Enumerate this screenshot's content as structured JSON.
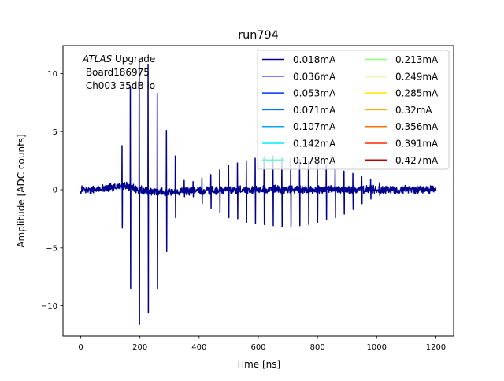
{
  "chart_data": {
    "type": "line",
    "title": "run794",
    "xlabel": "Time [ns]",
    "ylabel": "Amplitude [ADC counts]",
    "xlim": [
      -60,
      1260
    ],
    "ylim": [
      -12.6,
      12.4
    ],
    "xticks": [
      0,
      200,
      400,
      600,
      800,
      1000,
      1200
    ],
    "xtick_labels": [
      "0",
      "200",
      "400",
      "600",
      "800",
      "1000",
      "1200"
    ],
    "yticks": [
      -10,
      -5,
      0,
      5,
      10
    ],
    "ytick_labels": [
      "−10",
      "−5",
      "0",
      "5",
      "10"
    ],
    "grid": false,
    "legend_position": "top-right",
    "legend_columns": 2,
    "annotation": {
      "atlas": "ATLAS",
      "upgrade": " Upgrade",
      "board": " Board186975",
      "channel": " Ch003 35dB lo"
    },
    "series": [
      {
        "name": "0.018mA",
        "color": "#00008f"
      },
      {
        "name": "0.036mA",
        "color": "#0000ea"
      },
      {
        "name": "0.053mA",
        "color": "#0030ff"
      },
      {
        "name": "0.071mA",
        "color": "#0070ff"
      },
      {
        "name": "0.107mA",
        "color": "#00a8ff"
      },
      {
        "name": "0.142mA",
        "color": "#00ecff"
      },
      {
        "name": "0.178mA",
        "color": "#66ffc8"
      },
      {
        "name": "0.213mA",
        "color": "#8cff70"
      },
      {
        "name": "0.249mA",
        "color": "#c0ff38"
      },
      {
        "name": "0.285mA",
        "color": "#ffe600"
      },
      {
        "name": "0.32mA",
        "color": "#ffb000"
      },
      {
        "name": "0.356mA",
        "color": "#ff7000"
      },
      {
        "name": "0.391mA",
        "color": "#ff2a00"
      },
      {
        "name": "0.427mA",
        "color": "#c00000"
      }
    ],
    "waveform": {
      "series_drawn": "0.018mA",
      "t_start": 0,
      "t_end": 1200,
      "baseline": [
        [
          0,
          0.0
        ],
        [
          60,
          0.05
        ],
        [
          120,
          0.25
        ],
        [
          150,
          0.35
        ],
        [
          175,
          0.1
        ],
        [
          200,
          -0.05
        ],
        [
          260,
          -0.15
        ],
        [
          400,
          -0.1
        ],
        [
          600,
          0.0
        ],
        [
          1000,
          0.0
        ],
        [
          1200,
          0.05
        ]
      ],
      "pulses": [
        {
          "t": 140,
          "pos": 3.8,
          "neg": -3.3
        },
        {
          "t": 168,
          "pos": 8.9,
          "neg": -8.5
        },
        {
          "t": 198,
          "pos": 11.2,
          "neg": -11.6
        },
        {
          "t": 228,
          "pos": 10.8,
          "neg": -10.6
        },
        {
          "t": 259,
          "pos": 8.3,
          "neg": -8.5
        },
        {
          "t": 290,
          "pos": 5.1,
          "neg": -5.3
        },
        {
          "t": 320,
          "pos": 2.9,
          "neg": -2.4
        },
        {
          "t": 350,
          "pos": 0.8,
          "neg": -0.6
        },
        {
          "t": 380,
          "pos": 0.7,
          "neg": -0.6
        },
        {
          "t": 410,
          "pos": 1.0,
          "neg": -1.2
        },
        {
          "t": 440,
          "pos": 1.3,
          "neg": -1.6
        },
        {
          "t": 470,
          "pos": 1.7,
          "neg": -2.0
        },
        {
          "t": 500,
          "pos": 2.1,
          "neg": -2.4
        },
        {
          "t": 530,
          "pos": 2.3,
          "neg": -2.5
        },
        {
          "t": 560,
          "pos": 2.5,
          "neg": -2.8
        },
        {
          "t": 590,
          "pos": 2.7,
          "neg": -2.9
        },
        {
          "t": 620,
          "pos": 2.8,
          "neg": -3.0
        },
        {
          "t": 650,
          "pos": 2.9,
          "neg": -3.1
        },
        {
          "t": 680,
          "pos": 2.8,
          "neg": -3.2
        },
        {
          "t": 710,
          "pos": 2.7,
          "neg": -3.2
        },
        {
          "t": 740,
          "pos": 2.6,
          "neg": -3.1
        },
        {
          "t": 770,
          "pos": 2.4,
          "neg": -3.0
        },
        {
          "t": 800,
          "pos": 2.3,
          "neg": -2.8
        },
        {
          "t": 830,
          "pos": 2.1,
          "neg": -2.6
        },
        {
          "t": 860,
          "pos": 1.8,
          "neg": -2.4
        },
        {
          "t": 890,
          "pos": 1.6,
          "neg": -2.1
        },
        {
          "t": 920,
          "pos": 1.4,
          "neg": -1.7
        },
        {
          "t": 950,
          "pos": 1.1,
          "neg": -1.2
        },
        {
          "t": 980,
          "pos": 0.9,
          "neg": -0.8
        },
        {
          "t": 1010,
          "pos": 0.6,
          "neg": -0.5
        }
      ]
    }
  }
}
